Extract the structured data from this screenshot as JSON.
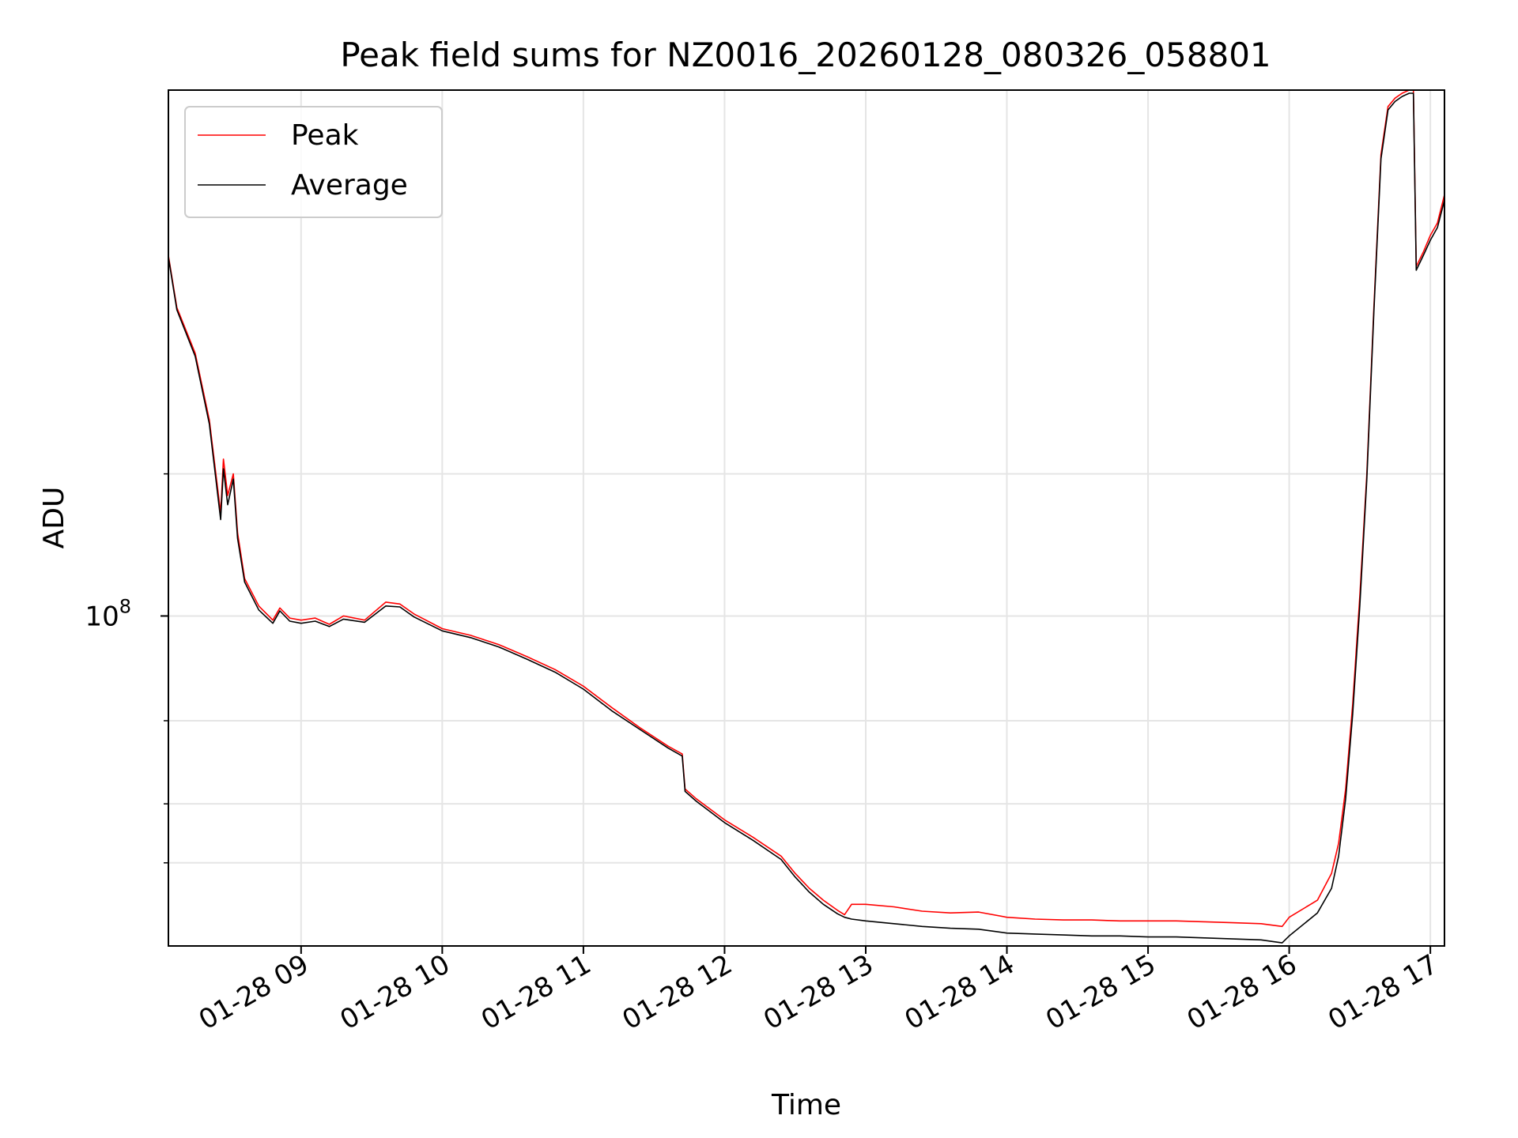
{
  "chart_data": {
    "type": "line",
    "title": "Peak field sums for NZ0016_20260128_080326_058801",
    "xlabel": "Time",
    "ylabel": "ADU",
    "yscale": "log",
    "xlim_hours": [
      8.06,
      17.1
    ],
    "ylim": [
      20000000,
      1300000000
    ],
    "x_ticks": [
      {
        "hour": 9,
        "label": "01-28 09"
      },
      {
        "hour": 10,
        "label": "01-28 10"
      },
      {
        "hour": 11,
        "label": "01-28 11"
      },
      {
        "hour": 12,
        "label": "01-28 12"
      },
      {
        "hour": 13,
        "label": "01-28 13"
      },
      {
        "hour": 14,
        "label": "01-28 14"
      },
      {
        "hour": 15,
        "label": "01-28 15"
      },
      {
        "hour": 16,
        "label": "01-28 16"
      },
      {
        "hour": 17,
        "label": "01-28 17"
      }
    ],
    "y_major_ticks": [
      {
        "value": 100000000,
        "label": "10",
        "exponent": "8"
      }
    ],
    "y_minor_ticks": [
      30000000,
      40000000,
      60000000,
      200000000
    ],
    "grid": true,
    "legend": {
      "location": "upper-left",
      "entries": [
        {
          "name": "Peak",
          "color": "#ff0000"
        },
        {
          "name": "Average",
          "color": "#000000"
        }
      ]
    },
    "series": [
      {
        "name": "Peak",
        "color": "#ff0000",
        "x_hours": [
          8.06,
          8.12,
          8.25,
          8.35,
          8.43,
          8.45,
          8.48,
          8.52,
          8.55,
          8.6,
          8.7,
          8.8,
          8.85,
          8.92,
          9.0,
          9.1,
          9.2,
          9.3,
          9.45,
          9.6,
          9.7,
          9.8,
          10.0,
          10.2,
          10.4,
          10.6,
          10.8,
          11.0,
          11.2,
          11.4,
          11.6,
          11.7,
          11.72,
          11.8,
          12.0,
          12.2,
          12.4,
          12.5,
          12.6,
          12.7,
          12.8,
          12.85,
          12.9,
          13.0,
          13.2,
          13.4,
          13.6,
          13.8,
          14.0,
          14.2,
          14.4,
          14.6,
          14.8,
          15.0,
          15.2,
          15.4,
          15.6,
          15.8,
          15.95,
          16.0,
          16.2,
          16.3,
          16.35,
          16.4,
          16.45,
          16.5,
          16.55,
          16.6,
          16.65,
          16.7,
          16.75,
          16.8,
          16.85,
          16.88,
          16.9,
          16.95,
          17.0,
          17.05,
          17.1
        ],
        "y": [
          580000000,
          450000000,
          360000000,
          260000000,
          165000000,
          215000000,
          180000000,
          200000000,
          150000000,
          120000000,
          105000000,
          98000000,
          104000000,
          99000000,
          98000000,
          99000000,
          96000000,
          100000000,
          98000000,
          107000000,
          106000000,
          101000000,
          94000000,
          91000000,
          87000000,
          82000000,
          77000000,
          71000000,
          64000000,
          58000000,
          53000000,
          51000000,
          43000000,
          41000000,
          37000000,
          34000000,
          31000000,
          28500000,
          26500000,
          25000000,
          23800000,
          23300000,
          24500000,
          24500000,
          24200000,
          23700000,
          23500000,
          23600000,
          23000000,
          22800000,
          22700000,
          22700000,
          22600000,
          22600000,
          22600000,
          22500000,
          22400000,
          22300000,
          22000000,
          23000000,
          25000000,
          28500000,
          33000000,
          43000000,
          65000000,
          110000000,
          200000000,
          450000000,
          950000000,
          1200000000,
          1250000000,
          1280000000,
          1300000000,
          1300000000,
          550000000,
          590000000,
          640000000,
          680000000,
          780000000
        ]
      },
      {
        "name": "Average",
        "color": "#000000",
        "x_hours": [
          8.06,
          8.12,
          8.25,
          8.35,
          8.43,
          8.45,
          8.48,
          8.52,
          8.55,
          8.6,
          8.7,
          8.8,
          8.85,
          8.92,
          9.0,
          9.1,
          9.2,
          9.3,
          9.45,
          9.6,
          9.7,
          9.8,
          10.0,
          10.2,
          10.4,
          10.6,
          10.8,
          11.0,
          11.2,
          11.4,
          11.6,
          11.7,
          11.72,
          11.8,
          12.0,
          12.2,
          12.4,
          12.5,
          12.6,
          12.7,
          12.8,
          12.85,
          12.9,
          13.0,
          13.2,
          13.4,
          13.6,
          13.8,
          14.0,
          14.2,
          14.4,
          14.6,
          14.8,
          15.0,
          15.2,
          15.4,
          15.6,
          15.8,
          15.95,
          16.0,
          16.2,
          16.3,
          16.35,
          16.4,
          16.45,
          16.5,
          16.55,
          16.6,
          16.65,
          16.7,
          16.75,
          16.8,
          16.85,
          16.88,
          16.9,
          16.95,
          17.0,
          17.05,
          17.1
        ],
        "y": [
          575000000,
          445000000,
          355000000,
          255000000,
          160000000,
          205000000,
          172000000,
          195000000,
          146000000,
          118000000,
          103000000,
          96500000,
          102500000,
          97500000,
          96500000,
          97500000,
          95000000,
          98500000,
          97000000,
          105000000,
          104500000,
          99500000,
          93000000,
          90000000,
          86000000,
          81000000,
          76000000,
          70000000,
          63000000,
          57500000,
          52500000,
          50500000,
          42500000,
          40500000,
          36500000,
          33500000,
          30500000,
          28000000,
          26000000,
          24500000,
          23400000,
          23000000,
          22800000,
          22600000,
          22300000,
          22000000,
          21800000,
          21700000,
          21300000,
          21200000,
          21100000,
          21000000,
          21000000,
          20900000,
          20900000,
          20800000,
          20700000,
          20600000,
          20300000,
          21000000,
          23500000,
          26500000,
          31000000,
          41000000,
          62000000,
          105000000,
          195000000,
          440000000,
          930000000,
          1180000000,
          1230000000,
          1260000000,
          1280000000,
          1280000000,
          540000000,
          580000000,
          625000000,
          665000000,
          760000000
        ]
      }
    ]
  }
}
